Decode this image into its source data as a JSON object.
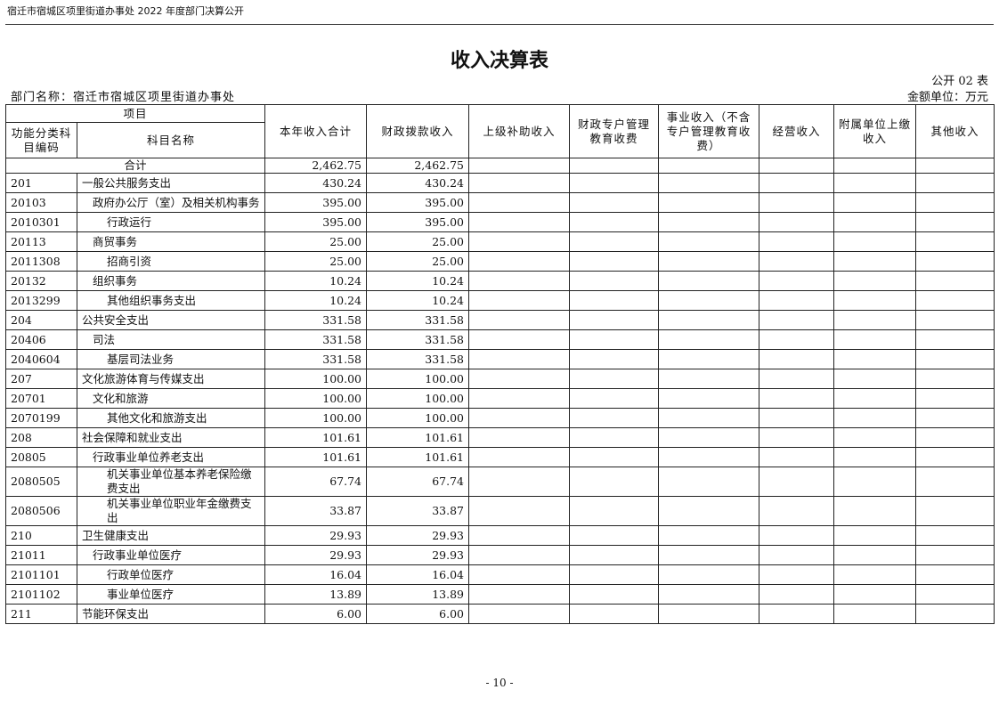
{
  "running_head": "宿迁市宿城区项里街道办事处 2022 年度部门决算公开",
  "title": "收入决算表",
  "form_no": "公开 02 表",
  "department": "部门名称：宿迁市宿城区项里街道办事处",
  "unit": "金额单位：万元",
  "headers": {
    "item": "项目",
    "code": "功能分类科目编码",
    "name": "科目名称",
    "cols": [
      "本年收入合计",
      "财政拨款收入",
      "上级补助收入",
      "财政专户管理教育收费",
      "事业收入（不含专户管理教育收费）",
      "经营收入",
      "附属单位上缴收入",
      "其他收入"
    ]
  },
  "total": {
    "label": "合计",
    "values": [
      "2,462.75",
      "2,462.75",
      "",
      "",
      "",
      "",
      "",
      ""
    ]
  },
  "rows": [
    {
      "code": "201",
      "name": "一般公共服务支出",
      "level": 1,
      "values": [
        "430.24",
        "430.24"
      ]
    },
    {
      "code": "20103",
      "name": "政府办公厅（室）及相关机构事务",
      "level": 2,
      "values": [
        "395.00",
        "395.00"
      ]
    },
    {
      "code": "2010301",
      "name": "行政运行",
      "level": 3,
      "values": [
        "395.00",
        "395.00"
      ]
    },
    {
      "code": "20113",
      "name": "商贸事务",
      "level": 2,
      "values": [
        "25.00",
        "25.00"
      ]
    },
    {
      "code": "2011308",
      "name": "招商引资",
      "level": 3,
      "values": [
        "25.00",
        "25.00"
      ]
    },
    {
      "code": "20132",
      "name": "组织事务",
      "level": 2,
      "values": [
        "10.24",
        "10.24"
      ]
    },
    {
      "code": "2013299",
      "name": "其他组织事务支出",
      "level": 3,
      "values": [
        "10.24",
        "10.24"
      ]
    },
    {
      "code": "204",
      "name": "公共安全支出",
      "level": 1,
      "values": [
        "331.58",
        "331.58"
      ]
    },
    {
      "code": "20406",
      "name": "司法",
      "level": 2,
      "values": [
        "331.58",
        "331.58"
      ]
    },
    {
      "code": "2040604",
      "name": "基层司法业务",
      "level": 3,
      "values": [
        "331.58",
        "331.58"
      ]
    },
    {
      "code": "207",
      "name": "文化旅游体育与传媒支出",
      "level": 1,
      "values": [
        "100.00",
        "100.00"
      ]
    },
    {
      "code": "20701",
      "name": "文化和旅游",
      "level": 2,
      "values": [
        "100.00",
        "100.00"
      ]
    },
    {
      "code": "2070199",
      "name": "其他文化和旅游支出",
      "level": 3,
      "values": [
        "100.00",
        "100.00"
      ]
    },
    {
      "code": "208",
      "name": "社会保障和就业支出",
      "level": 1,
      "values": [
        "101.61",
        "101.61"
      ]
    },
    {
      "code": "20805",
      "name": "行政事业单位养老支出",
      "level": 2,
      "values": [
        "101.61",
        "101.61"
      ]
    },
    {
      "code": "2080505",
      "name": "机关事业单位基本养老保险缴费支出",
      "level": 3,
      "values": [
        "67.74",
        "67.74"
      ]
    },
    {
      "code": "2080506",
      "name": "机关事业单位职业年金缴费支出",
      "level": 3,
      "values": [
        "33.87",
        "33.87"
      ]
    },
    {
      "code": "210",
      "name": "卫生健康支出",
      "level": 1,
      "values": [
        "29.93",
        "29.93"
      ]
    },
    {
      "code": "21011",
      "name": "行政事业单位医疗",
      "level": 2,
      "values": [
        "29.93",
        "29.93"
      ]
    },
    {
      "code": "2101101",
      "name": "行政单位医疗",
      "level": 3,
      "values": [
        "16.04",
        "16.04"
      ]
    },
    {
      "code": "2101102",
      "name": "事业单位医疗",
      "level": 3,
      "values": [
        "13.89",
        "13.89"
      ]
    },
    {
      "code": "211",
      "name": "节能环保支出",
      "level": 1,
      "values": [
        "6.00",
        "6.00"
      ]
    }
  ],
  "page_number": "- 10 -"
}
